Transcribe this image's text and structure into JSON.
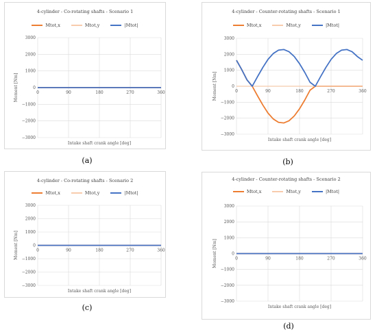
{
  "colors": {
    "mx": "#ED7D31",
    "my": "#F8CBAD",
    "mtot": "#4472C4",
    "grid": "#d9d9d9",
    "axis": "#808080",
    "text": "#595959"
  },
  "labels": [
    "(a)",
    "(b)",
    "(c)",
    "(d)"
  ],
  "chart_data": [
    {
      "type": "line",
      "title": "4-cylinder - Co-rotating shafts - Scenario 1",
      "xlabel": "Intake shaft crank angle [deg]",
      "ylabel": "Moment [Nm]",
      "xlim": [
        0,
        360
      ],
      "ylim": [
        -3000,
        3000
      ],
      "xticks": [
        "0",
        "90",
        "180",
        "270",
        "360"
      ],
      "yticks": [
        "3000",
        "2000",
        "1000",
        "0",
        "−1000",
        "−2000",
        "−3000"
      ],
      "legend": "top",
      "x": [
        0,
        45,
        90,
        135,
        180,
        225,
        270,
        315,
        360
      ],
      "series": [
        {
          "name": "Mtot,x",
          "values": [
            0,
            0,
            0,
            0,
            0,
            0,
            0,
            0,
            0
          ]
        },
        {
          "name": "Mtot,y",
          "values": [
            0,
            0,
            0,
            0,
            0,
            0,
            0,
            0,
            0
          ]
        },
        {
          "name": "|Mtot|",
          "values": [
            0,
            0,
            0,
            0,
            0,
            0,
            0,
            0,
            0
          ]
        }
      ]
    },
    {
      "type": "line",
      "title": "4-cylinder - Counter-rotating shafts - Scenario 1",
      "xlabel": "Intake shaft crank angle [deg]",
      "ylabel": "Moment [Nm]",
      "xlim": [
        0,
        360
      ],
      "ylim": [
        -3000,
        3000
      ],
      "xticks": [
        "0",
        "90",
        "180",
        "270",
        "360"
      ],
      "yticks": [
        "3000",
        "2000",
        "1000",
        "0",
        "−1000",
        "−2000",
        "−3000"
      ],
      "legend": "top",
      "x": [
        0,
        15,
        30,
        45,
        60,
        75,
        90,
        105,
        120,
        135,
        150,
        165,
        180,
        195,
        210,
        225,
        240,
        255,
        270,
        285,
        300,
        315,
        330,
        345,
        360
      ],
      "series": [
        {
          "name": "Mtot,x",
          "values": [
            1626,
            1040,
            399,
            0,
            -596,
            -1171,
            -1681,
            -2049,
            -2260,
            -2300,
            -2162,
            -1859,
            -1413,
            -862,
            -246,
            0,
            0,
            0,
            0,
            0,
            0,
            0,
            0,
            0,
            0
          ]
        },
        {
          "name": "Mtot,y",
          "values": [
            0,
            0,
            0,
            0,
            0,
            0,
            0,
            0,
            0,
            0,
            0,
            0,
            0,
            0,
            0,
            0,
            0,
            0,
            0,
            0,
            0,
            0,
            0,
            0,
            0
          ]
        },
        {
          "name": "|Mtot|",
          "values": [
            1626,
            1040,
            399,
            0,
            596,
            1171,
            1681,
            2049,
            2260,
            2300,
            2162,
            1859,
            1413,
            862,
            246,
            0,
            600,
            1170,
            1680,
            2050,
            2260,
            2300,
            2160,
            1860,
            1626
          ]
        }
      ]
    },
    {
      "type": "line",
      "title": "4-cylinder - Co-rotating shafts - Scenario 2",
      "xlabel": "Intake shaft crank angle [deg]",
      "ylabel": "Moment [Nm]",
      "xlim": [
        0,
        360
      ],
      "ylim": [
        -3000,
        3000
      ],
      "xticks": [
        "0",
        "90",
        "180",
        "270",
        "360"
      ],
      "yticks": [
        "3000",
        "2000",
        "1000",
        "0",
        "−1000",
        "−2000",
        "−3000"
      ],
      "legend": "top",
      "x": [
        0,
        45,
        90,
        135,
        180,
        225,
        270,
        315,
        360
      ],
      "series": [
        {
          "name": "Mtot,x",
          "values": [
            0,
            0,
            0,
            0,
            0,
            0,
            0,
            0,
            0
          ]
        },
        {
          "name": "Mtot,y",
          "values": [
            0,
            0,
            0,
            0,
            0,
            0,
            0,
            0,
            0
          ]
        },
        {
          "name": "|Mtot|",
          "values": [
            0,
            0,
            0,
            0,
            0,
            0,
            0,
            0,
            0
          ]
        }
      ]
    },
    {
      "type": "line",
      "title": "4-cylinder - Counter-rotating shafts - Scenario 2",
      "xlabel": "Intake shaft crank angle [deg]",
      "ylabel": "Moment [Nm]",
      "xlim": [
        0,
        360
      ],
      "ylim": [
        -3000,
        3000
      ],
      "xticks": [
        "0",
        "90",
        "180",
        "270",
        "360"
      ],
      "yticks": [
        "3000",
        "2000",
        "1000",
        "0",
        "−1000",
        "−2000",
        "−3000"
      ],
      "legend": "top",
      "x": [
        0,
        45,
        90,
        135,
        180,
        225,
        270,
        315,
        360
      ],
      "series": [
        {
          "name": "Mtot,x",
          "values": [
            0,
            0,
            0,
            0,
            0,
            0,
            0,
            0,
            0
          ]
        },
        {
          "name": "Mtot,y",
          "values": [
            0,
            0,
            0,
            0,
            0,
            0,
            0,
            0,
            0
          ]
        },
        {
          "name": "|Mtot|",
          "values": [
            0,
            0,
            0,
            0,
            0,
            0,
            0,
            0,
            0
          ]
        }
      ]
    }
  ]
}
